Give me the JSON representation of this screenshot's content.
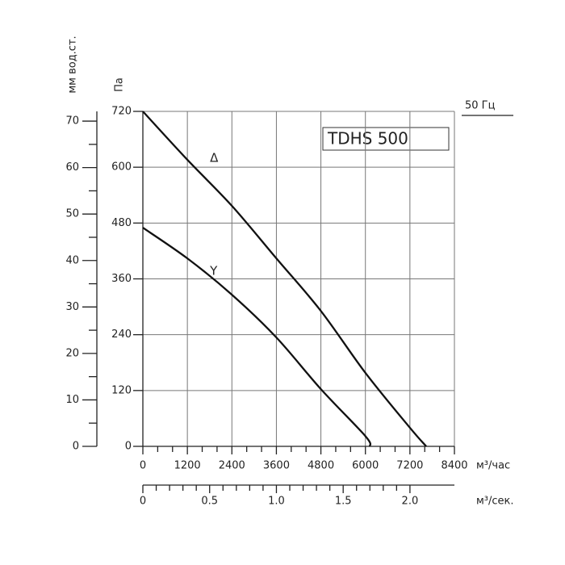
{
  "chart_data": {
    "type": "line",
    "title": "TDHS 500",
    "annotation": "50 Гц",
    "x_label": "м³/час",
    "y_label": "Па",
    "y2_label": "мм вод.ст.",
    "x2_label": "м³/сек.",
    "xlim": [
      0,
      8400
    ],
    "xticks": [
      0,
      1200,
      2400,
      3600,
      4800,
      6000,
      7200,
      8400
    ],
    "ylim": [
      0,
      720
    ],
    "yticks": [
      0,
      120,
      240,
      360,
      480,
      600,
      720
    ],
    "y2lim": [
      0,
      72.1
    ],
    "y2ticks": [
      0,
      10,
      20,
      30,
      40,
      50,
      60,
      70
    ],
    "x2lim": [
      0,
      2.333
    ],
    "x2ticks": [
      0,
      0.5,
      {
        "value": 1,
        "label": "1.0"
      },
      1.5,
      {
        "value": 2,
        "label": "2.0"
      }
    ],
    "grid": true,
    "series": [
      {
        "name": "Δ",
        "color": "#111",
        "x": [
          0,
          1200,
          2400,
          3600,
          4800,
          6000,
          7200,
          7640
        ],
        "values": [
          720,
          616,
          517,
          404,
          291,
          158,
          40,
          0
        ]
      },
      {
        "name": "Y",
        "color": "#111",
        "x": [
          0,
          1200,
          2400,
          3600,
          4800,
          6000,
          6120
        ],
        "values": [
          470,
          404,
          326,
          234,
          123,
          22,
          0
        ]
      }
    ]
  }
}
